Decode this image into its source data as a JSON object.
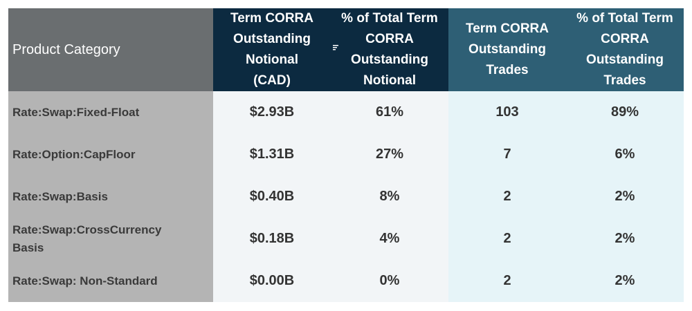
{
  "table": {
    "headers": {
      "category": "Product Category",
      "notional_l1": "Term CORRA",
      "notional_l2": "Outstanding",
      "notional_l3": "Notional",
      "notional_l4": "(CAD)",
      "pct_notional_l1": "% of Total Term",
      "pct_notional_l2": "CORRA",
      "pct_notional_l3": "Outstanding",
      "pct_notional_l4": "Notional",
      "trades_l1": "Term CORRA",
      "trades_l2": "Outstanding",
      "trades_l3": "Trades",
      "pct_trades_l1": "% of Total Term",
      "pct_trades_l2": "CORRA",
      "pct_trades_l3": "Outstanding",
      "pct_trades_l4": "Trades"
    },
    "rows": [
      {
        "category": "Rate:Swap:Fixed-Float",
        "notional": "$2.93B",
        "pct_notional": "61%",
        "trades": "103",
        "pct_trades": "89%"
      },
      {
        "category": "Rate:Option:CapFloor",
        "notional": "$1.31B",
        "pct_notional": "27%",
        "trades": "7",
        "pct_trades": "6%"
      },
      {
        "category": "Rate:Swap:Basis",
        "notional": "$0.40B",
        "pct_notional": "8%",
        "trades": "2",
        "pct_trades": "2%"
      },
      {
        "category_l1": "Rate:Swap:CrossCurrency",
        "category_l2": "Basis",
        "notional": "$0.18B",
        "pct_notional": "4%",
        "trades": "2",
        "pct_trades": "2%"
      },
      {
        "category": "Rate:Swap: Non-Standard",
        "notional": "$0.00B",
        "pct_notional": "0%",
        "trades": "2",
        "pct_trades": "2%"
      }
    ]
  },
  "icons": {
    "sort_icon": "filter-sort-icon"
  }
}
